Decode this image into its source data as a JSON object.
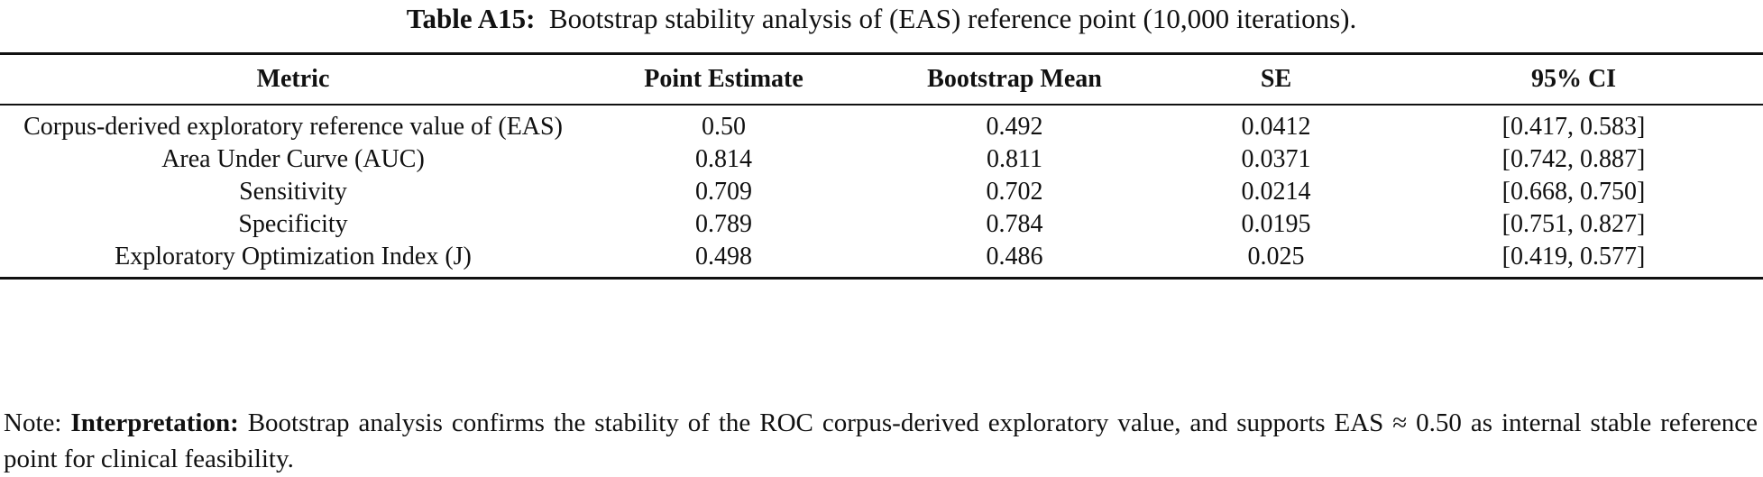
{
  "caption": {
    "label": "Table A15:",
    "text": "Bootstrap stability analysis of (EAS) reference point (10,000 iterations)."
  },
  "table": {
    "headers": [
      "Metric",
      "Point Estimate",
      "Bootstrap Mean",
      "SE",
      "95% CI"
    ],
    "rows": [
      [
        "Corpus-derived exploratory reference value of (EAS)",
        "0.50",
        "0.492",
        "0.0412",
        "[0.417, 0.583]"
      ],
      [
        "Area Under Curve (AUC)",
        "0.814",
        "0.811",
        "0.0371",
        "[0.742, 0.887]"
      ],
      [
        "Sensitivity",
        "0.709",
        "0.702",
        "0.0214",
        "[0.668, 0.750]"
      ],
      [
        "Specificity",
        "0.789",
        "0.784",
        "0.0195",
        "[0.751, 0.827]"
      ],
      [
        "Exploratory Optimization Index (J)",
        "0.498",
        "0.486",
        "0.025",
        "[0.419, 0.577]"
      ]
    ]
  },
  "note": {
    "prefix": "Note: ",
    "bold": "Interpretation:",
    "text": " Bootstrap analysis confirms the stability of the ROC corpus-derived exploratory value, and supports EAS ≈ 0.50 as internal stable reference point for clinical feasibility."
  }
}
